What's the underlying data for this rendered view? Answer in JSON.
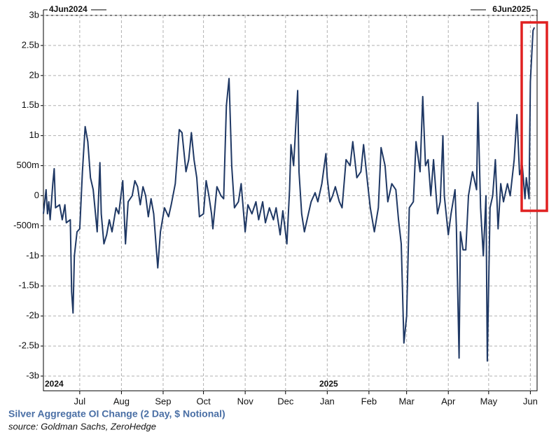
{
  "chart_data": {
    "type": "line",
    "title": "Silver Aggregate OI Change (2 Day, $ Notional)",
    "source": "source: Goldman Sachs, ZeroHedge",
    "range_start": "4Jun2024",
    "range_end": "6Jun2025",
    "year_labels": [
      {
        "value": "2024-06-04",
        "label": "2024"
      },
      {
        "value": "2025-01-01",
        "label": "2025"
      }
    ],
    "color": "#1f3864",
    "grid": true,
    "xlim": [
      "2024-06-04",
      "2025-06-06"
    ],
    "xticks": [
      {
        "value": "2024-07-01",
        "label": "Jul"
      },
      {
        "value": "2024-08-01",
        "label": "Aug"
      },
      {
        "value": "2024-09-01",
        "label": "Sep"
      },
      {
        "value": "2024-10-01",
        "label": "Oct"
      },
      {
        "value": "2024-11-01",
        "label": "Nov"
      },
      {
        "value": "2024-12-01",
        "label": "Dec"
      },
      {
        "value": "2025-01-01",
        "label": "Jan"
      },
      {
        "value": "2025-02-01",
        "label": "Feb"
      },
      {
        "value": "2025-03-01",
        "label": "Mar"
      },
      {
        "value": "2025-04-01",
        "label": "Apr"
      },
      {
        "value": "2025-05-01",
        "label": "May"
      },
      {
        "value": "2025-06-01",
        "label": "Jun"
      }
    ],
    "ylim": [
      -3,
      3
    ],
    "yticks": [
      {
        "value": 3,
        "label": "3b"
      },
      {
        "value": 2.5,
        "label": "2.5b"
      },
      {
        "value": 2,
        "label": "2b"
      },
      {
        "value": 1.5,
        "label": "1.5b"
      },
      {
        "value": 1,
        "label": "1b"
      },
      {
        "value": 0.5,
        "label": "500m"
      },
      0,
      {
        "value": -0.5,
        "label": "-500m"
      },
      {
        "value": -1,
        "label": "-1b"
      },
      {
        "value": -1.5,
        "label": "-1.5b"
      },
      {
        "value": -2,
        "label": "-2b"
      },
      {
        "value": -2.5,
        "label": "-2.5b"
      },
      {
        "value": -3,
        "label": "-3b"
      }
    ],
    "x": [
      "2024-06-04",
      "2024-06-06",
      "2024-06-07",
      "2024-06-08",
      "2024-06-09",
      "2024-06-11",
      "2024-06-12",
      "2024-06-13",
      "2024-06-16",
      "2024-06-18",
      "2024-06-20",
      "2024-06-21",
      "2024-06-24",
      "2024-06-25",
      "2024-06-26",
      "2024-06-27",
      "2024-06-29",
      "2024-07-01",
      "2024-07-03",
      "2024-07-05",
      "2024-07-07",
      "2024-07-09",
      "2024-07-11",
      "2024-07-14",
      "2024-07-16",
      "2024-07-17",
      "2024-07-19",
      "2024-07-21",
      "2024-07-23",
      "2024-07-25",
      "2024-07-28",
      "2024-07-30",
      "2024-08-02",
      "2024-08-04",
      "2024-08-06",
      "2024-08-09",
      "2024-08-11",
      "2024-08-13",
      "2024-08-15",
      "2024-08-17",
      "2024-08-19",
      "2024-08-21",
      "2024-08-23",
      "2024-08-25",
      "2024-08-28",
      "2024-08-30",
      "2024-09-02",
      "2024-09-05",
      "2024-09-07",
      "2024-09-10",
      "2024-09-13",
      "2024-09-15",
      "2024-09-18",
      "2024-09-20",
      "2024-09-22",
      "2024-09-24",
      "2024-09-26",
      "2024-09-28",
      "2024-10-01",
      "2024-10-03",
      "2024-10-05",
      "2024-10-07",
      "2024-10-08",
      "2024-10-11",
      "2024-10-14",
      "2024-10-16",
      "2024-10-18",
      "2024-10-20",
      "2024-10-22",
      "2024-10-24",
      "2024-10-27",
      "2024-10-29",
      "2024-11-01",
      "2024-11-03",
      "2024-11-06",
      "2024-11-09",
      "2024-11-11",
      "2024-11-14",
      "2024-11-16",
      "2024-11-19",
      "2024-11-22",
      "2024-11-24",
      "2024-11-27",
      "2024-11-29",
      "2024-12-02",
      "2024-12-04",
      "2024-12-05",
      "2024-12-07",
      "2024-12-10",
      "2024-12-11",
      "2024-12-13",
      "2024-12-15",
      "2024-12-18",
      "2024-12-20",
      "2024-12-23",
      "2024-12-25",
      "2024-12-28",
      "2024-12-31",
      "2025-01-01",
      "2025-01-03",
      "2025-01-05",
      "2025-01-07",
      "2025-01-10",
      "2025-01-12",
      "2025-01-15",
      "2025-01-18",
      "2025-01-20",
      "2025-01-23",
      "2025-01-26",
      "2025-01-28",
      "2025-01-31",
      "2025-02-02",
      "2025-02-05",
      "2025-02-08",
      "2025-02-10",
      "2025-02-13",
      "2025-02-15",
      "2025-02-18",
      "2025-02-21",
      "2025-02-23",
      "2025-02-25",
      "2025-02-27",
      "2025-03-01",
      "2025-03-03",
      "2025-03-06",
      "2025-03-08",
      "2025-03-11",
      "2025-03-13",
      "2025-03-15",
      "2025-03-17",
      "2025-03-19",
      "2025-03-21",
      "2025-03-24",
      "2025-03-26",
      "2025-03-28",
      "2025-03-29",
      "2025-04-01",
      "2025-04-03",
      "2025-04-06",
      "2025-04-07",
      "2025-04-09",
      "2025-04-10",
      "2025-04-12",
      "2025-04-14",
      "2025-04-16",
      "2025-04-19",
      "2025-04-22",
      "2025-04-23",
      "2025-04-25",
      "2025-04-27",
      "2025-04-29",
      "2025-04-30",
      "2025-05-02",
      "2025-05-04",
      "2025-05-06",
      "2025-05-08",
      "2025-05-10",
      "2025-05-12",
      "2025-05-15",
      "2025-05-17",
      "2025-05-20",
      "2025-05-22",
      "2025-05-24",
      "2025-05-26",
      "2025-05-28",
      "2025-05-29",
      "2025-05-31",
      "2025-06-01",
      "2025-06-03",
      "2025-06-04"
    ],
    "values": [
      -0.3,
      0.1,
      -0.3,
      -0.1,
      -0.4,
      0.2,
      0.45,
      -0.2,
      -0.15,
      -0.4,
      -0.15,
      -0.45,
      -0.4,
      -1.6,
      -1.95,
      -1.0,
      -0.6,
      -0.55,
      0.4,
      1.15,
      0.9,
      0.3,
      0.1,
      -0.6,
      0.55,
      -0.3,
      -0.8,
      -0.65,
      -0.4,
      -0.6,
      -0.2,
      -0.3,
      0.25,
      -0.8,
      -0.1,
      0.0,
      0.25,
      0.15,
      -0.15,
      0.15,
      0.0,
      -0.35,
      -0.05,
      -0.3,
      -1.2,
      -0.6,
      -0.2,
      -0.35,
      -0.15,
      0.2,
      1.1,
      1.05,
      0.4,
      0.6,
      1.05,
      0.6,
      0.3,
      -0.35,
      -0.3,
      0.25,
      0.0,
      -0.3,
      -0.55,
      0.15,
      0.0,
      -0.05,
      1.5,
      1.95,
      0.5,
      -0.2,
      -0.1,
      0.2,
      -0.6,
      -0.15,
      -0.3,
      -0.1,
      -0.4,
      -0.1,
      -0.45,
      -0.2,
      -0.4,
      -0.2,
      -0.65,
      -0.25,
      -0.8,
      0.1,
      0.85,
      0.5,
      1.75,
      0.4,
      -0.3,
      -0.6,
      -0.3,
      -0.1,
      0.05,
      -0.1,
      0.2,
      0.7,
      0.3,
      -0.1,
      0.0,
      0.15,
      -0.1,
      -0.2,
      0.6,
      0.5,
      0.9,
      0.3,
      0.4,
      0.85,
      0.2,
      -0.2,
      -0.6,
      -0.2,
      0.8,
      0.5,
      -0.1,
      0.2,
      0.1,
      -0.4,
      -0.8,
      -2.45,
      -2.0,
      -0.2,
      -0.1,
      0.9,
      0.4,
      1.65,
      0.5,
      0.6,
      0.0,
      0.6,
      -0.3,
      -0.1,
      1.0,
      0.0,
      -0.65,
      -0.3,
      0.1,
      -0.5,
      -2.7,
      -0.6,
      -0.9,
      -0.9,
      0.0,
      0.4,
      0.1,
      1.55,
      -0.2,
      -1.0,
      0.0,
      -2.75,
      -0.2,
      0.0,
      0.6,
      -0.55,
      0.2,
      -0.1,
      0.2,
      0.0,
      0.6,
      1.35,
      0.35,
      0.5,
      -0.05,
      0.3,
      -0.05,
      1.9,
      2.75,
      2.8
    ]
  }
}
